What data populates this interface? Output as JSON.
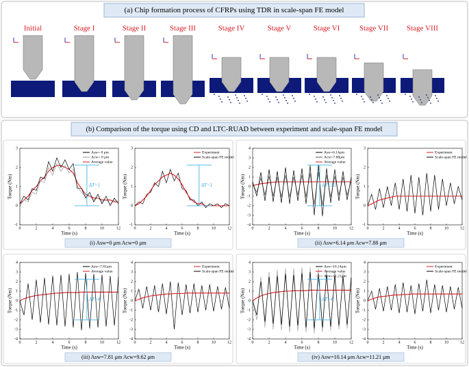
{
  "panel_a": {
    "title": "(a) Chip formation process of CFRPs using TDR in scale-span FE model",
    "stages": [
      "Initial",
      "Stage I",
      "Stage II",
      "Stage III",
      "Stage IV",
      "Stage V",
      "Stage VI",
      "Stage VII",
      "Stage VIII"
    ]
  },
  "panel_b": {
    "title": "(b) Comparison of the torque using CD and LTC-RUAD between experiment and scale-span FE model",
    "captions": [
      "(i) Asw=0 μm Acw=0 μm",
      "(ii) Asw=6.14 μm Acw=7.88 μm",
      "(iii) Asw=7.81 μm Acw=9.62 μm",
      "(iv) Asw=10.14 μm Acw=11.21 μm"
    ]
  },
  "chart_data": [
    {
      "type": "line",
      "xlabel": "Time (s)",
      "ylabel": "Torque (Nm)",
      "annotation": "ΔT=1",
      "x": [
        0,
        0.5,
        1,
        1.5,
        2,
        2.5,
        3,
        3.5,
        4,
        4.5,
        5,
        5.5,
        6,
        6.5,
        7,
        7.5,
        8,
        8.5,
        9,
        9.5,
        10,
        10.5,
        11,
        11.5,
        12
      ],
      "xlim": [
        0,
        12
      ],
      "xticks": [
        0,
        2,
        4,
        6,
        8,
        10,
        12
      ],
      "ylim": [
        -1,
        3
      ],
      "yticks": [
        -1,
        0,
        1,
        2,
        3
      ],
      "series": [
        {
          "name": "Asw= 0 μm",
          "color": "#000000",
          "values": [
            0.1,
            0.5,
            0.3,
            0.9,
            0.8,
            1.5,
            1.4,
            2.3,
            1.8,
            2.5,
            2.0,
            2.4,
            1.9,
            2.2,
            0.9,
            0.9,
            0.4,
            0.7,
            0.2,
            0.6,
            0.1,
            0.5,
            0.0,
            0.4,
            0.1
          ]
        },
        {
          "name": "Acw= 0 μm",
          "color": "#999999",
          "values": [
            0.0,
            0.3,
            0.2,
            0.7,
            0.6,
            1.3,
            1.2,
            2.0,
            1.6,
            2.2,
            1.8,
            2.1,
            1.7,
            1.9,
            1.0,
            0.7,
            0.5,
            0.5,
            0.3,
            0.4,
            0.2,
            0.3,
            0.1,
            0.3,
            0.2
          ]
        },
        {
          "name": "Average value",
          "color": "#d71920",
          "values": [
            0.1,
            0.3,
            0.5,
            0.8,
            1.0,
            1.3,
            1.5,
            1.8,
            2.0,
            2.1,
            2.1,
            2.0,
            1.9,
            1.7,
            1.2,
            0.9,
            0.6,
            0.5,
            0.4,
            0.4,
            0.3,
            0.3,
            0.3,
            0.2,
            0.2
          ]
        }
      ]
    },
    {
      "type": "line",
      "xlabel": "Time (s)",
      "ylabel": "Torque (Nm)",
      "annotation": "ΔT=1",
      "x": [
        0,
        0.5,
        1,
        1.5,
        2,
        2.5,
        3,
        3.5,
        4,
        4.5,
        5,
        5.5,
        6,
        6.5,
        7,
        7.5,
        8,
        8.5,
        9,
        9.5,
        10,
        10.5,
        11,
        11.5,
        12
      ],
      "xlim": [
        0,
        12
      ],
      "xticks": [
        0,
        2,
        4,
        6,
        8,
        10,
        12
      ],
      "ylim": [
        -1,
        3
      ],
      "yticks": [
        -1,
        0,
        1,
        2,
        3
      ],
      "series": [
        {
          "name": "Experiment",
          "color": "#d71920",
          "values": [
            0.0,
            0.1,
            0.3,
            0.5,
            0.8,
            1.1,
            1.3,
            1.5,
            1.6,
            1.7,
            1.6,
            1.4,
            1.1,
            0.7,
            0.4,
            0.2,
            0.1,
            0.1,
            0.0,
            0.0,
            0.0,
            0.0,
            0.0,
            0.0,
            0.0
          ]
        },
        {
          "name": "Scale-span FE model",
          "color": "#000000",
          "values": [
            0.0,
            0.2,
            0.1,
            0.6,
            0.7,
            1.2,
            1.0,
            1.8,
            1.2,
            1.9,
            1.3,
            1.7,
            0.9,
            0.8,
            0.3,
            0.3,
            0.0,
            0.2,
            -0.1,
            0.1,
            0.0,
            0.1,
            -0.1,
            0.1,
            0.0
          ]
        }
      ]
    },
    {
      "type": "line",
      "xlabel": "Time (s)",
      "ylabel": "Torque (Nm)",
      "annotation": "ΔT=3.5",
      "x": [
        0,
        0.5,
        1,
        1.5,
        2,
        2.5,
        3,
        3.5,
        4,
        4.5,
        5,
        5.5,
        6,
        6.5,
        7,
        7.5,
        8,
        8.5,
        9,
        9.5,
        10,
        10.5,
        11,
        11.5,
        12
      ],
      "xlim": [
        0,
        12
      ],
      "xticks": [
        0,
        2,
        4,
        6,
        8,
        10,
        12
      ],
      "ylim": [
        -4,
        4
      ],
      "yticks": [
        -4,
        -3,
        -2,
        -1,
        0,
        1,
        2,
        3,
        4
      ],
      "series": [
        {
          "name": "Asw=6.14μm",
          "color": "#000000",
          "values": [
            0.5,
            -1,
            1.5,
            -1.5,
            1.8,
            -1.6,
            1.6,
            -1.7,
            2.0,
            -1.8,
            1.7,
            -1.5,
            1.9,
            -1.8,
            2.2,
            -3.0,
            2.3,
            -3.1,
            1.9,
            -1.7,
            1.8,
            -1.5,
            1.6,
            -1.4,
            1.0
          ]
        },
        {
          "name": "Acw=7.88μm",
          "color": "#555555",
          "values": [
            0.3,
            -0.6,
            0.9,
            -0.9,
            1.1,
            -1.0,
            1.0,
            -1.1,
            1.2,
            -1.1,
            1.0,
            -0.9,
            1.2,
            -1.1,
            1.4,
            -1.9,
            1.5,
            -2.0,
            1.2,
            -1.1,
            1.1,
            -0.9,
            1.0,
            -0.9,
            0.6
          ]
        },
        {
          "name": "Average value",
          "color": "#d71920",
          "values": [
            0.1,
            0.2,
            0.3,
            0.35,
            0.4,
            0.45,
            0.5,
            0.5,
            0.5,
            0.5,
            0.5,
            0.5,
            0.5,
            0.5,
            0.5,
            0.5,
            0.5,
            0.5,
            0.5,
            0.5,
            0.5,
            0.5,
            0.5,
            0.5,
            0.5
          ]
        }
      ]
    },
    {
      "type": "line",
      "xlabel": "Time (s)",
      "ylabel": "Torque (Nm)",
      "x": [
        0,
        0.5,
        1,
        1.5,
        2,
        2.5,
        3,
        3.5,
        4,
        4.5,
        5,
        5.5,
        6,
        6.5,
        7,
        7.5,
        8,
        8.5,
        9,
        9.5,
        10,
        10.5,
        11,
        11.5,
        12
      ],
      "xlim": [
        0,
        12
      ],
      "xticks": [
        0,
        2,
        4,
        6,
        8,
        10,
        12
      ],
      "ylim": [
        -1,
        3
      ],
      "yticks": [
        -1,
        0,
        1,
        2,
        3
      ],
      "series": [
        {
          "name": "Experiment",
          "color": "#d71920",
          "values": [
            0,
            0.1,
            0.2,
            0.3,
            0.35,
            0.4,
            0.45,
            0.5,
            0.5,
            0.5,
            0.5,
            0.5,
            0.5,
            0.5,
            0.5,
            0.5,
            0.5,
            0.5,
            0.5,
            0.5,
            0.5,
            0.5,
            0.5,
            0.5,
            0.5
          ]
        },
        {
          "name": "Scale-span FE model",
          "color": "#000000",
          "values": [
            0,
            0.6,
            -0.2,
            0.9,
            -0.1,
            1.0,
            0.0,
            1.2,
            -0.2,
            1.4,
            -0.3,
            1.6,
            -0.4,
            1.5,
            -0.5,
            1.7,
            -0.3,
            1.6,
            -0.2,
            1.4,
            0.0,
            1.2,
            0.1,
            1.0,
            0.3
          ]
        }
      ]
    },
    {
      "type": "line",
      "xlabel": "Time (s)",
      "ylabel": "Torque (Nm)",
      "annotation": "ΔT=4",
      "x": [
        0,
        0.5,
        1,
        1.5,
        2,
        2.5,
        3,
        3.5,
        4,
        4.5,
        5,
        5.5,
        6,
        6.5,
        7,
        7.5,
        8,
        8.5,
        9,
        9.5,
        10,
        10.5,
        11,
        11.5,
        12
      ],
      "xlim": [
        0,
        12
      ],
      "xticks": [
        0,
        2,
        4,
        6,
        8,
        10,
        12
      ],
      "ylim": [
        -4,
        4
      ],
      "yticks": [
        -4,
        -3,
        -2,
        -1,
        0,
        1,
        2,
        3,
        4
      ],
      "series": [
        {
          "name": "Asw=7.81μm",
          "color": "#000000",
          "values": [
            0,
            -1.5,
            1.8,
            -2.0,
            2.2,
            -2.3,
            2.4,
            -2.5,
            2.6,
            -2.6,
            2.7,
            -2.7,
            2.8,
            -2.8,
            3.0,
            -3.1,
            2.9,
            -2.9,
            2.8,
            -2.8,
            2.7,
            -2.7,
            2.6,
            -2.6,
            2.5
          ]
        },
        {
          "name": "Average value",
          "color": "#d71920",
          "values": [
            0,
            0.2,
            0.35,
            0.45,
            0.55,
            0.6,
            0.65,
            0.7,
            0.75,
            0.8,
            0.8,
            0.85,
            0.85,
            0.85,
            0.85,
            0.9,
            0.9,
            0.9,
            0.9,
            0.9,
            0.9,
            0.9,
            0.9,
            0.9,
            0.9
          ]
        }
      ]
    },
    {
      "type": "line",
      "xlabel": "Time (s)",
      "ylabel": "Torque (Nm)",
      "x": [
        0,
        0.5,
        1,
        1.5,
        2,
        2.5,
        3,
        3.5,
        4,
        4.5,
        5,
        5.5,
        6,
        6.5,
        7,
        7.5,
        8,
        8.5,
        9,
        9.5,
        10,
        10.5,
        11,
        11.5,
        12
      ],
      "xlim": [
        0,
        12
      ],
      "xticks": [
        0,
        2,
        4,
        6,
        8,
        10,
        12
      ],
      "ylim": [
        -4,
        4
      ],
      "yticks": [
        -4,
        -3,
        -2,
        -1,
        0,
        1,
        2,
        3,
        4
      ],
      "series": [
        {
          "name": "Experiment",
          "color": "#d71920",
          "values": [
            0,
            0.15,
            0.3,
            0.4,
            0.5,
            0.55,
            0.6,
            0.65,
            0.7,
            0.7,
            0.75,
            0.75,
            0.75,
            0.8,
            0.8,
            0.8,
            0.8,
            0.8,
            0.8,
            0.8,
            0.8,
            0.8,
            0.8,
            0.8,
            0.8
          ]
        },
        {
          "name": "Scale-span FE model",
          "color": "#000000",
          "values": [
            0,
            1.2,
            -0.8,
            1.5,
            -1.0,
            1.6,
            -1.2,
            1.8,
            -1.4,
            2.0,
            -3.0,
            1.9,
            -1.5,
            1.7,
            -1.3,
            1.8,
            -1.2,
            1.6,
            -1.0,
            1.7,
            -1.1,
            1.5,
            -0.9,
            1.4,
            -0.8
          ]
        }
      ]
    },
    {
      "type": "line",
      "xlabel": "Time (s)",
      "ylabel": "Torque (Nm)",
      "annotation": "ΔT=4",
      "x": [
        0,
        0.5,
        1,
        1.5,
        2,
        2.5,
        3,
        3.5,
        4,
        4.5,
        5,
        5.5,
        6,
        6.5,
        7,
        7.5,
        8,
        8.5,
        9,
        9.5,
        10,
        10.5,
        11,
        11.5,
        12
      ],
      "xlim": [
        0,
        12
      ],
      "xticks": [
        0,
        2,
        4,
        6,
        8,
        10,
        12
      ],
      "ylim": [
        -4,
        4
      ],
      "yticks": [
        -4,
        -3,
        -2,
        -1,
        0,
        1,
        2,
        3,
        4
      ],
      "series": [
        {
          "name": "Asw=10.14μm",
          "color": "#000000",
          "values": [
            0,
            -1.5,
            2.0,
            -2.2,
            2.5,
            -2.4,
            2.6,
            -2.5,
            2.8,
            -2.7,
            2.7,
            -2.6,
            2.9,
            -2.8,
            3.0,
            -2.9,
            2.8,
            -2.8,
            2.7,
            -2.7,
            2.6,
            -2.6,
            2.5,
            -2.5,
            2.4
          ]
        },
        {
          "name": "Average value",
          "color": "#d71920",
          "values": [
            0,
            0.3,
            0.5,
            0.65,
            0.75,
            0.85,
            0.9,
            0.95,
            1.0,
            1.0,
            1.05,
            1.05,
            1.05,
            1.05,
            1.1,
            1.1,
            1.1,
            1.1,
            1.1,
            1.1,
            1.1,
            1.1,
            1.1,
            1.1,
            1.1
          ]
        },
        {
          "name": "Acw=11.21μm",
          "color": "#a0a0a0",
          "values": [
            0,
            -2.0,
            2.5,
            -2.8,
            3.0,
            -3.0,
            3.2,
            -3.1,
            3.4,
            -3.3,
            3.4,
            -3.2,
            3.5,
            -3.3,
            3.5,
            -3.4,
            3.3,
            -3.3,
            3.2,
            -3.1,
            3.1,
            -3.0,
            2.9,
            -2.9,
            2.8
          ]
        }
      ]
    },
    {
      "type": "line",
      "xlabel": "Time (s)",
      "ylabel": "Torque (Nm)",
      "x": [
        0,
        0.5,
        1,
        1.5,
        2,
        2.5,
        3,
        3.5,
        4,
        4.5,
        5,
        5.5,
        6,
        6.5,
        7,
        7.5,
        8,
        8.5,
        9,
        9.5,
        10,
        10.5,
        11,
        11.5,
        12
      ],
      "xlim": [
        0,
        12
      ],
      "xticks": [
        0,
        2,
        4,
        6,
        8,
        10,
        12
      ],
      "ylim": [
        -4,
        4
      ],
      "yticks": [
        -4,
        -3,
        -2,
        -1,
        0,
        1,
        2,
        3,
        4
      ],
      "series": [
        {
          "name": "Experiment",
          "color": "#d71920",
          "values": [
            0,
            0.15,
            0.3,
            0.4,
            0.45,
            0.5,
            0.55,
            0.6,
            0.6,
            0.65,
            0.65,
            0.7,
            0.7,
            0.7,
            0.7,
            0.7,
            0.7,
            0.7,
            0.7,
            0.7,
            0.7,
            0.7,
            0.7,
            0.7,
            0.7
          ]
        },
        {
          "name": "Scale-span FE model",
          "color": "#000000",
          "values": [
            0,
            1.0,
            -0.9,
            1.3,
            -1.1,
            1.5,
            -1.0,
            1.7,
            -1.3,
            1.9,
            -1.2,
            1.6,
            -1.4,
            1.8,
            -1.1,
            2.2,
            -1.3,
            1.7,
            -1.0,
            1.6,
            -1.2,
            1.5,
            -0.9,
            1.4,
            -0.8
          ]
        }
      ]
    }
  ]
}
